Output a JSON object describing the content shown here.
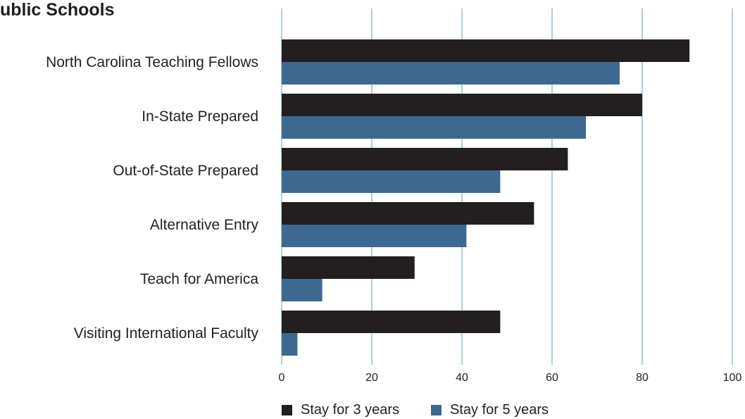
{
  "title": "ublic Schools",
  "chart_data": {
    "type": "bar",
    "orientation": "horizontal",
    "title": "ublic Schools",
    "categories": [
      "North Carolina Teaching Fellows",
      "In-State Prepared",
      "Out-of-State Prepared",
      "Alternative Entry",
      "Teach for America",
      "Visiting International Faculty"
    ],
    "series": [
      {
        "name": "Stay for 3 years",
        "color": "#231f20",
        "values": [
          90.5,
          80,
          63.5,
          56,
          29.5,
          48.5
        ]
      },
      {
        "name": "Stay for 5 years",
        "color": "#3d6990",
        "values": [
          75,
          67.5,
          48.5,
          41,
          9,
          3.5
        ]
      }
    ],
    "xlim": [
      0,
      100
    ],
    "xticks": [
      "0",
      "20",
      "40",
      "60",
      "80",
      "100"
    ],
    "grid": true,
    "legend_position": "bottom-center"
  }
}
